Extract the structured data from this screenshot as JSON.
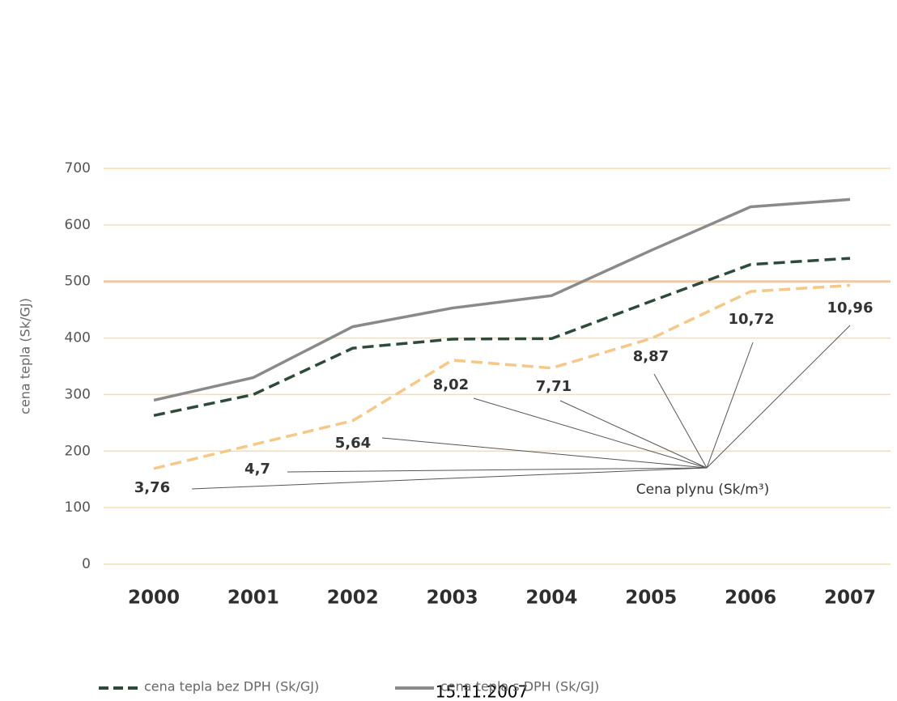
{
  "chart_data": {
    "type": "line",
    "categories": [
      "2000",
      "2001",
      "2002",
      "2003",
      "2004",
      "2005",
      "2006",
      "2007"
    ],
    "y_label": "cena tepla (Sk/GJ)",
    "annotation": "15.11.2007",
    "ylim": [
      0,
      700
    ],
    "yticks": [
      0,
      100,
      200,
      300,
      400,
      500,
      600,
      700
    ],
    "y2lim": [
      0,
      15.56
    ],
    "grid": true,
    "series": [
      {
        "name": "cena tepla bez DPH (Sk/GJ)",
        "color": "#2d4a3a",
        "dash": true,
        "values": [
          263,
          300,
          382,
          398,
          399,
          465,
          530,
          541
        ]
      },
      {
        "name": "cena tepla s DPH (Sk/GJ)",
        "color": "#8a8a8a",
        "dash": false,
        "values": [
          290,
          330,
          420,
          453,
          475,
          555,
          632,
          645
        ]
      },
      {
        "name": "Cena plynu (Sk/m³)",
        "color": "#f5c888",
        "dash": true,
        "axis": "y2",
        "values": [
          3.76,
          4.7,
          5.64,
          8.02,
          7.71,
          8.87,
          10.72,
          10.96
        ],
        "value_labels": [
          "3,76",
          "4,7",
          "5,64",
          "8,02",
          "7,71",
          "8,87",
          "10,72",
          "10,96"
        ]
      }
    ]
  }
}
